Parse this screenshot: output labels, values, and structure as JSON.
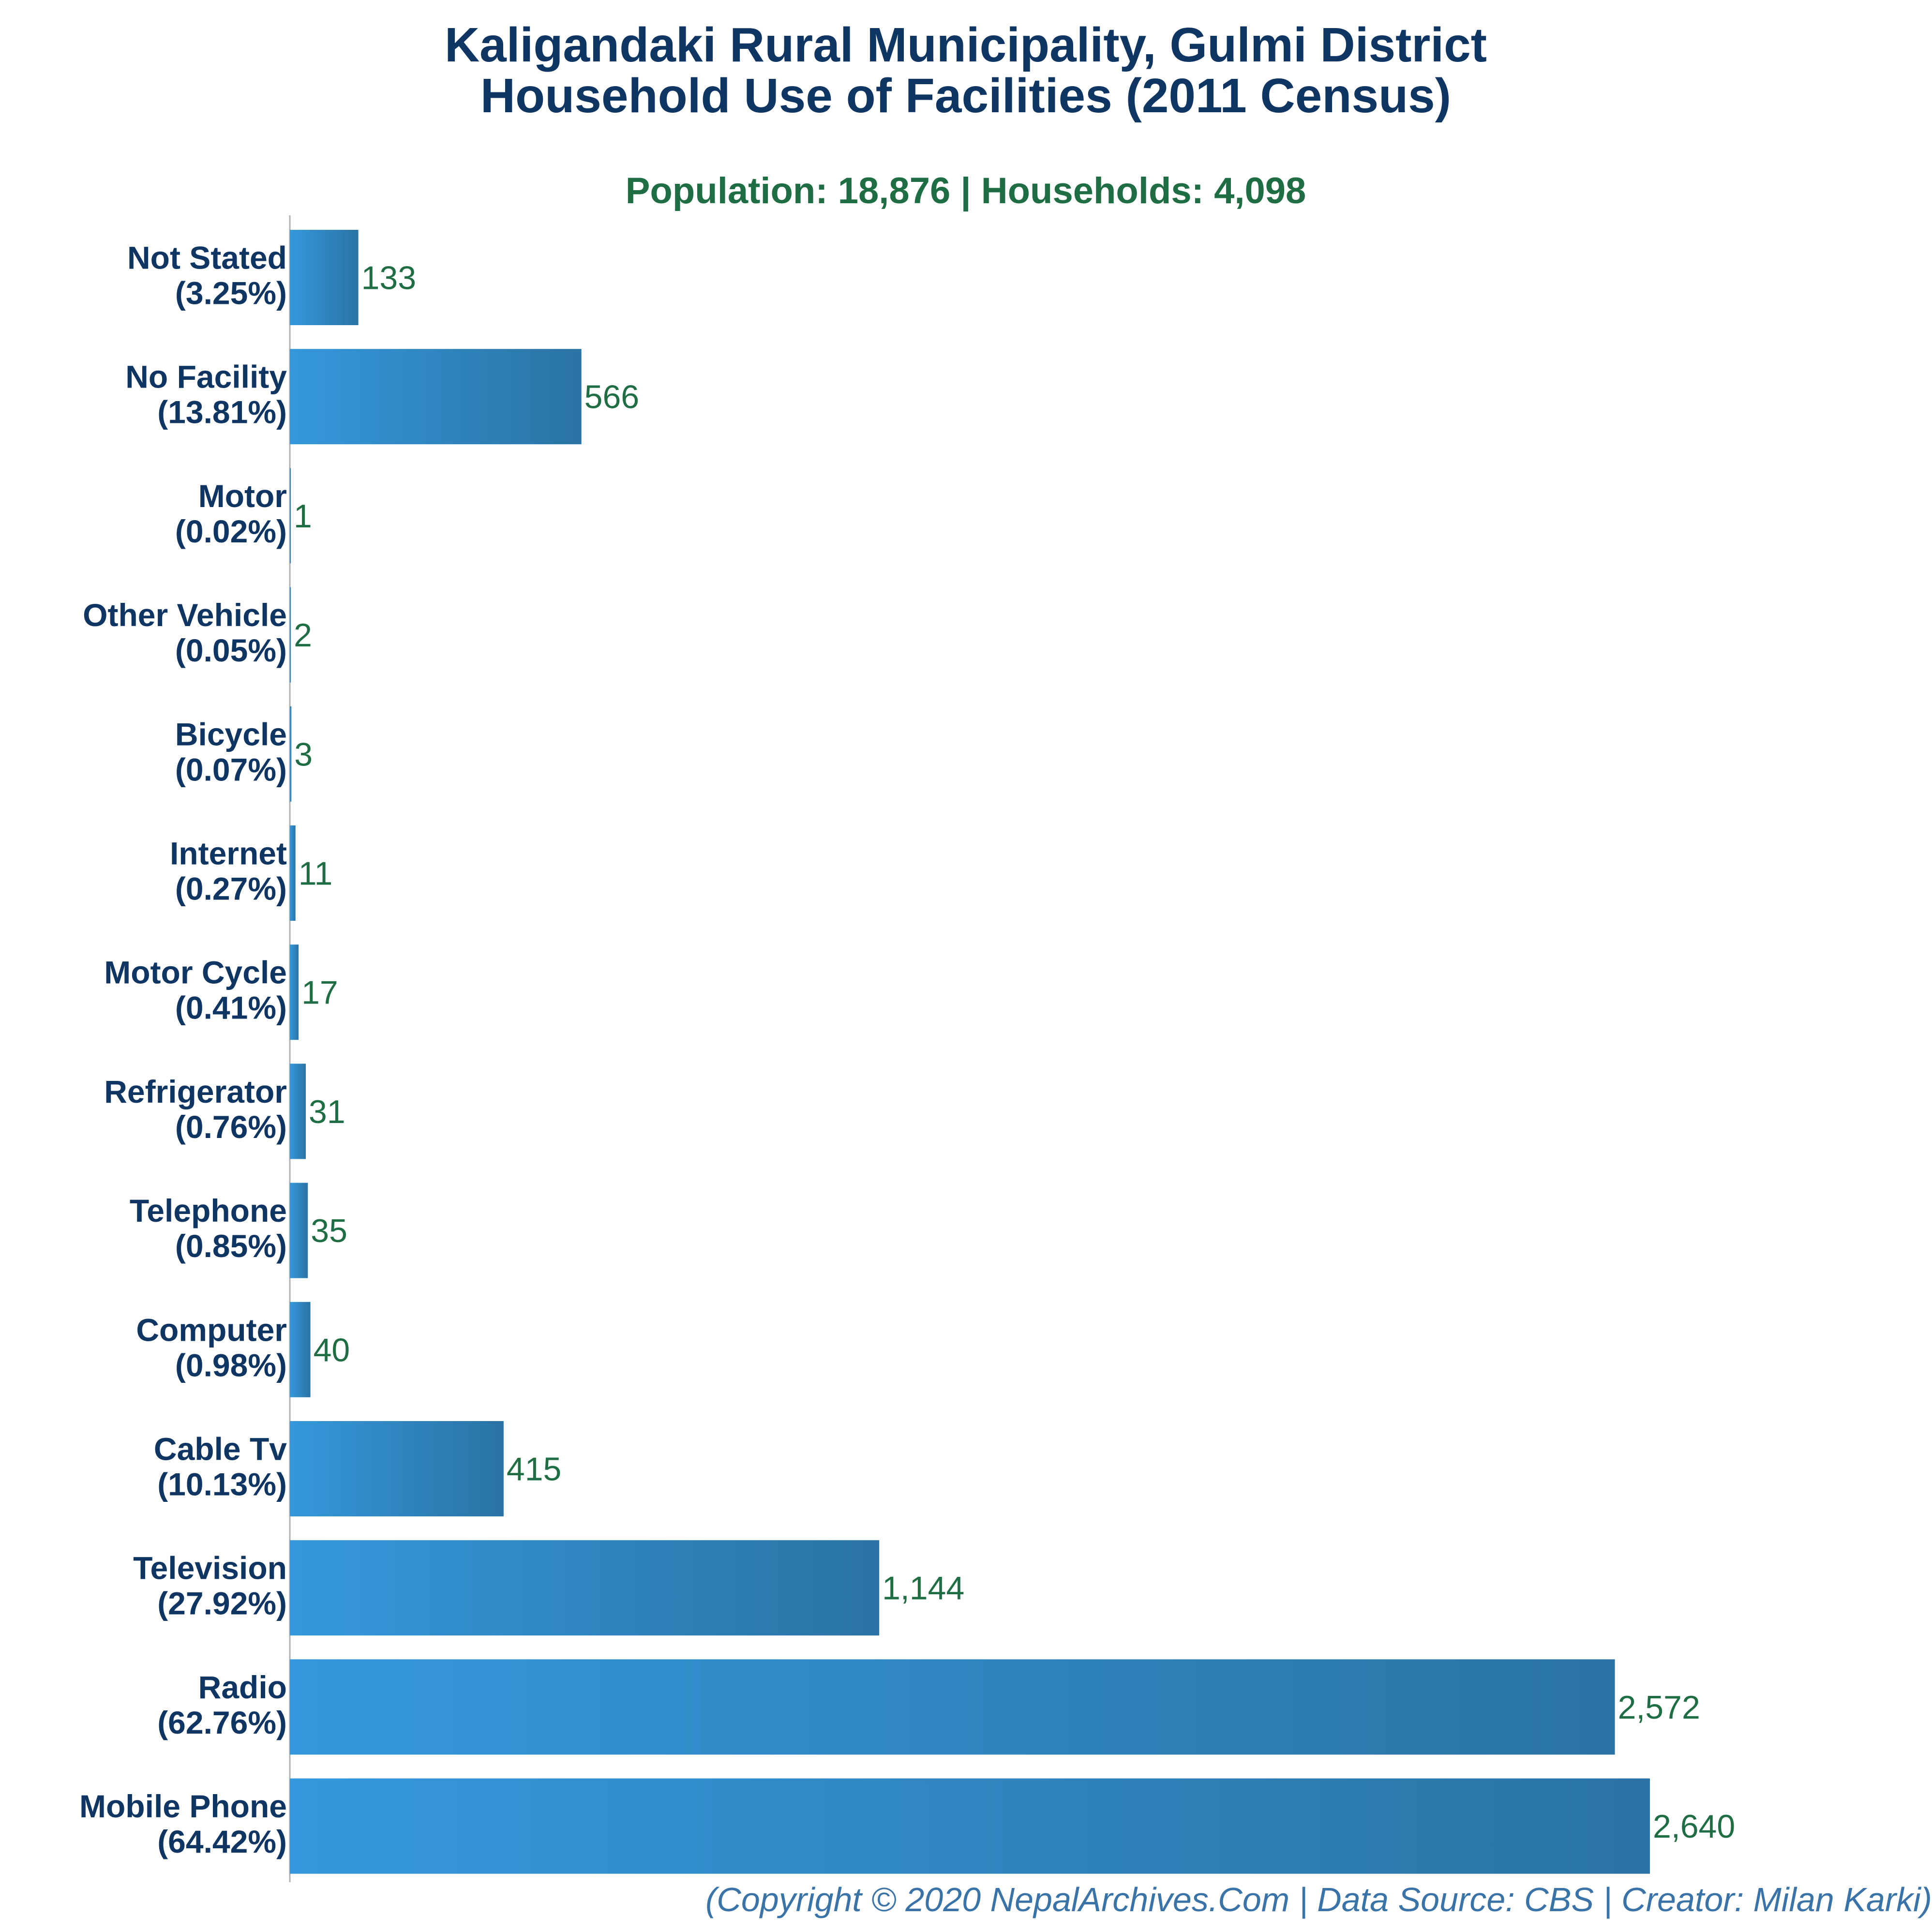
{
  "header": {
    "title_line1": "Kaligandaki Rural Municipality, Gulmi District",
    "title_line2": "Household Use of Facilities (2011 Census)",
    "subtitle": "Population: 18,876 | Households: 4,098"
  },
  "footer": {
    "text": "(Copyright © 2020 NepalArchives.Com | Data Source: CBS | Creator: Milan Karki)"
  },
  "colors": {
    "bar_gradient_start": "#3598dc",
    "bar_gradient_end": "#2a73a4",
    "title": "#0f3563",
    "value_label": "#1f6e43",
    "axis": "#b0b0b0",
    "footer": "#3a73a8"
  },
  "chart_data": {
    "type": "bar",
    "orientation": "horizontal",
    "categories": [
      "Not Stated",
      "No Facility",
      "Motor",
      "Other Vehicle",
      "Bicycle",
      "Internet",
      "Motor Cycle",
      "Refrigerator",
      "Telephone",
      "Computer",
      "Cable Tv",
      "Television",
      "Radio",
      "Mobile Phone"
    ],
    "percent_labels": [
      "(3.25%)",
      "(13.81%)",
      "(0.02%)",
      "(0.05%)",
      "(0.07%)",
      "(0.27%)",
      "(0.41%)",
      "(0.76%)",
      "(0.85%)",
      "(0.98%)",
      "(10.13%)",
      "(27.92%)",
      "(62.76%)",
      "(64.42%)"
    ],
    "values": [
      133,
      566,
      1,
      2,
      3,
      11,
      17,
      31,
      35,
      40,
      415,
      1144,
      2572,
      2640
    ],
    "value_labels": [
      "133",
      "566",
      "1",
      "2",
      "3",
      "11",
      "17",
      "31",
      "35",
      "40",
      "415",
      "1,144",
      "2,572",
      "2,640"
    ],
    "xlim": [
      0,
      2640
    ],
    "grid": false,
    "legend": "none"
  }
}
